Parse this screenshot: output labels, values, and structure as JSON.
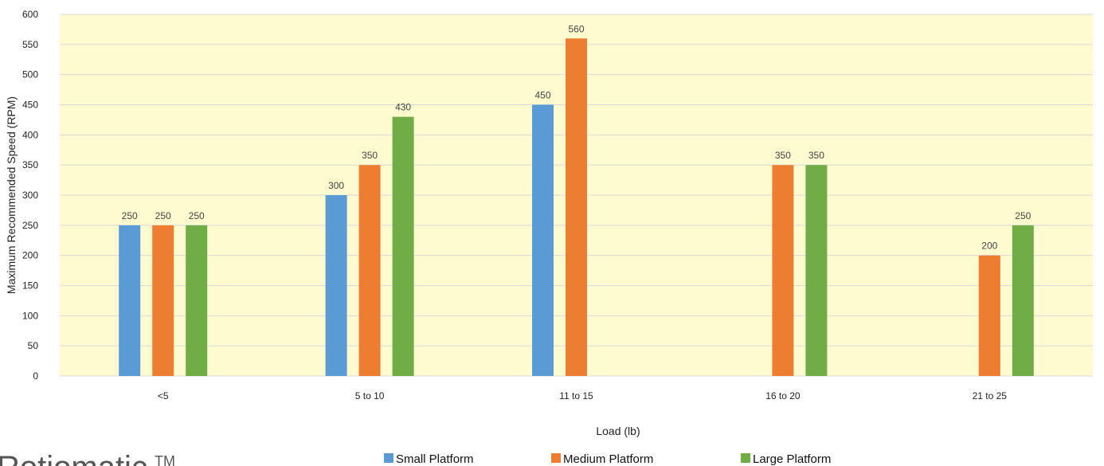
{
  "chart_data": {
    "type": "bar",
    "categories": [
      "<5",
      "5 to 10",
      "11 to 15",
      "16 to 20",
      "21 to 25"
    ],
    "series": [
      {
        "name": "Small Platform",
        "color": "#5b9bd5",
        "values": [
          250,
          300,
          450,
          null,
          null
        ]
      },
      {
        "name": "Medium Platform",
        "color": "#ed7d31",
        "values": [
          250,
          350,
          560,
          350,
          200
        ]
      },
      {
        "name": "Large Platform",
        "color": "#70ad47",
        "values": [
          250,
          430,
          null,
          350,
          250
        ]
      }
    ],
    "title": "",
    "xlabel": "Load (lb)",
    "ylabel": "Maximum Recommended Speed (RPM)",
    "ylim": [
      0,
      600
    ],
    "yticks": [
      0,
      50,
      100,
      150,
      200,
      250,
      300,
      350,
      400,
      450,
      500,
      550,
      600
    ],
    "grid": true,
    "legend": "bottom",
    "plot_background": "#fefbd1",
    "gridline_color": "#d9d9d9"
  },
  "logo": {
    "text": "Rotiomatic",
    "mark": "TM"
  }
}
